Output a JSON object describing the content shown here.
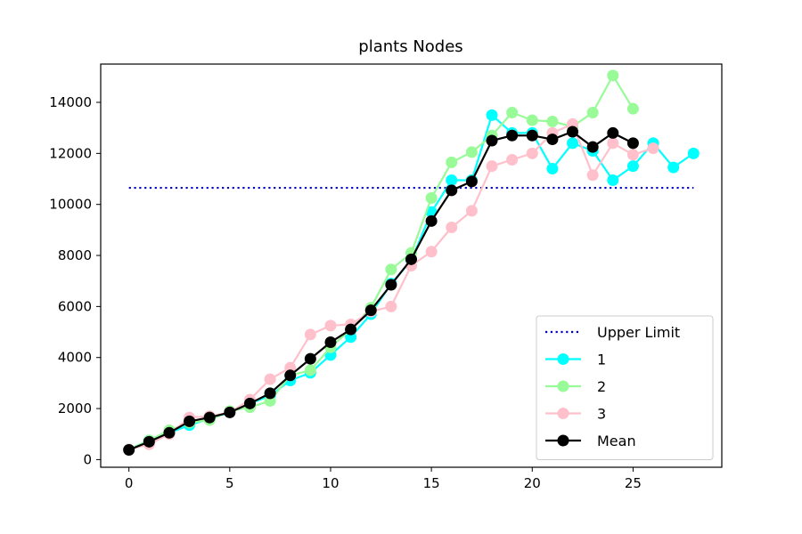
{
  "chart_data": {
    "type": "line",
    "title": "plants Nodes",
    "xlabel": "",
    "ylabel": "",
    "xlim": [
      -1.4,
      29.4
    ],
    "ylim": [
      -300,
      15500
    ],
    "xticks": [
      0,
      5,
      10,
      15,
      20,
      25
    ],
    "yticks": [
      0,
      2000,
      4000,
      6000,
      8000,
      10000,
      12000,
      14000
    ],
    "grid": false,
    "legend_position": "lower-right",
    "upper_limit": {
      "name": "Upper Limit",
      "value": 10650,
      "x_range": [
        0,
        28
      ],
      "color": "#0000cc",
      "style": "dotted"
    },
    "series": [
      {
        "name": "1",
        "color": "#00ffff",
        "x": [
          0,
          1,
          2,
          3,
          4,
          5,
          6,
          7,
          8,
          9,
          10,
          11,
          12,
          13,
          14,
          15,
          16,
          17,
          18,
          19,
          20,
          21,
          22,
          23,
          24,
          25,
          26,
          27,
          28
        ],
        "values": [
          400,
          750,
          1050,
          1350,
          1600,
          1850,
          2200,
          2500,
          3100,
          3400,
          4100,
          4800,
          5700,
          6900,
          7800,
          9700,
          10950,
          10950,
          13500,
          12800,
          12800,
          11400,
          12400,
          12100,
          10950,
          11500,
          12400,
          11450,
          12000
        ]
      },
      {
        "name": "2",
        "color": "#98fb98",
        "x": [
          0,
          1,
          2,
          3,
          4,
          5,
          6,
          7,
          8,
          9,
          10,
          11,
          12,
          13,
          14,
          15,
          16,
          17,
          18,
          19,
          20,
          21,
          22,
          23,
          24,
          25
        ],
        "values": [
          400,
          750,
          1150,
          1450,
          1550,
          1900,
          2050,
          2300,
          3300,
          3500,
          4400,
          5100,
          5950,
          7450,
          8100,
          10250,
          11650,
          12050,
          12700,
          13600,
          13300,
          13250,
          13050,
          13600,
          15050,
          13750
        ]
      },
      {
        "name": "3",
        "color": "#ffc0cb",
        "x": [
          0,
          1,
          2,
          3,
          4,
          5,
          6,
          7,
          8,
          9,
          10,
          11,
          12,
          13,
          14,
          15,
          16,
          17,
          18,
          19,
          20,
          21,
          22,
          23,
          24,
          25,
          26
        ],
        "values": [
          400,
          600,
          1000,
          1650,
          1700,
          1850,
          2350,
          3150,
          3600,
          4900,
          5250,
          5300,
          5800,
          6000,
          7600,
          8150,
          9100,
          9750,
          11500,
          11750,
          12000,
          12800,
          13150,
          11150,
          12400,
          11950,
          12200
        ]
      },
      {
        "name": "Mean",
        "color": "#000000",
        "x": [
          0,
          1,
          2,
          3,
          4,
          5,
          6,
          7,
          8,
          9,
          10,
          11,
          12,
          13,
          14,
          15,
          16,
          17,
          18,
          19,
          20,
          21,
          22,
          23,
          24,
          25
        ],
        "values": [
          380,
          700,
          1050,
          1500,
          1650,
          1850,
          2200,
          2600,
          3300,
          3950,
          4600,
          5100,
          5850,
          6850,
          7850,
          9350,
          10550,
          10900,
          12500,
          12700,
          12700,
          12550,
          12850,
          12250,
          12800,
          12400
        ]
      }
    ]
  }
}
